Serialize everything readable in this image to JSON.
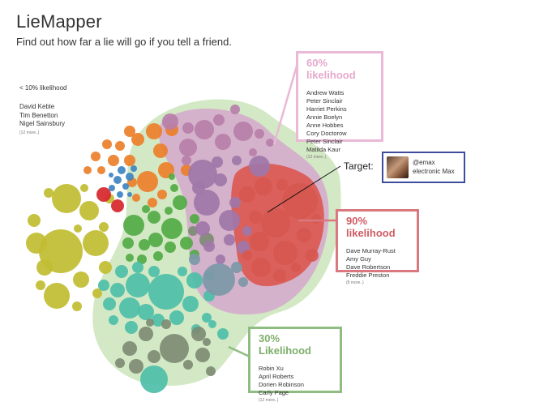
{
  "app": {
    "title": "LieMapper",
    "subtitle": "Find out how far a lie will go if you tell a friend."
  },
  "low_group": {
    "label": "< 10% likelihood",
    "names": [
      "David Keble",
      "Tim Benetton",
      "Nigel Sainsbury"
    ],
    "more": "(12 more..)"
  },
  "groups": [
    {
      "id": "g60",
      "title": "60% likelihood",
      "color": "#e4a9cc",
      "names": [
        "Andrew Watts",
        "Peter Sinclair",
        "Harriet Perkins",
        "Annie Boelyn",
        "Anne Hobbes",
        "Cory Doctorow",
        "Peter Sinclair",
        "Matilda Kaur"
      ],
      "more": "(12 more..)"
    },
    {
      "id": "g90",
      "title": "90% likelihood",
      "color": "#cf5b63",
      "names": [
        "Dave Murray-Rust",
        "Amy Guy",
        "Dave Robertson",
        "Freddie Preston"
      ],
      "more": "(8 more..)"
    },
    {
      "id": "g30",
      "title": "30% Likelihood",
      "color": "#7daf6a",
      "names": [
        "Robin Xu",
        "April Roberts",
        "Dorien Robinson",
        "Carly Page"
      ],
      "more": "(12 more..)"
    }
  ],
  "target": {
    "label": "Target:",
    "handle": "@emax",
    "name": "electronic Max"
  },
  "palette": {
    "green_region": "#d3e8c4",
    "purple_region": "#d5b2cc",
    "red_region": "#db5f5a",
    "olive": "#c1bd31",
    "orange": "#ec7f2a",
    "blue": "#3e84c1",
    "crimson": "#d7262c",
    "bright_green": "#52aa45",
    "teal": "#4dbea8",
    "gray_green": "#7d8b73",
    "violet": "#a077a8",
    "mauve": "#b67fa9",
    "slate": "#7c98a8",
    "salmon": "#d6584f"
  }
}
